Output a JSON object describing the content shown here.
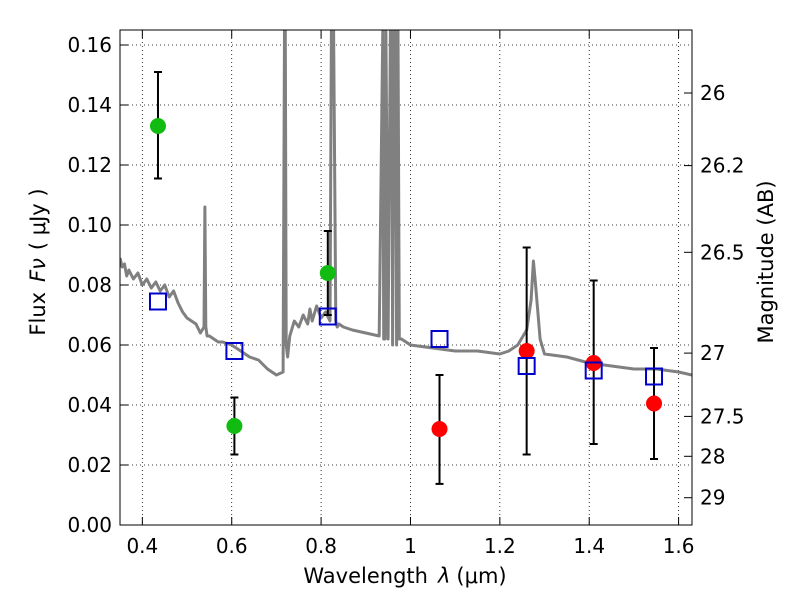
{
  "chart_data": {
    "type": "scatter",
    "xlabel_text": "Wavelength",
    "xlabel_unit": "(μm)",
    "xlabel_symbol": "λ",
    "ylabel_text": "Flux",
    "ylabel_symbol": "Fν",
    "ylabel_unit": "( μJy )",
    "y2label": "Magnitude (AB)",
    "xlim": [
      0.35,
      1.63
    ],
    "ylim": [
      0.0,
      0.165
    ],
    "grid": true,
    "x_ticks": [
      {
        "value": 0.4,
        "label": "0.4"
      },
      {
        "value": 0.6,
        "label": "0.6"
      },
      {
        "value": 0.8,
        "label": "0.8"
      },
      {
        "value": 1.0,
        "label": "1"
      },
      {
        "value": 1.2,
        "label": "1.2"
      },
      {
        "value": 1.4,
        "label": "1.4"
      },
      {
        "value": 1.6,
        "label": "1.6"
      }
    ],
    "y_ticks": [
      {
        "value": 0.0,
        "label": "0.00"
      },
      {
        "value": 0.02,
        "label": "0.02"
      },
      {
        "value": 0.04,
        "label": "0.04"
      },
      {
        "value": 0.06,
        "label": "0.06"
      },
      {
        "value": 0.08,
        "label": "0.08"
      },
      {
        "value": 0.1,
        "label": "0.10"
      },
      {
        "value": 0.12,
        "label": "0.12"
      },
      {
        "value": 0.14,
        "label": "0.14"
      },
      {
        "value": 0.16,
        "label": "0.16"
      }
    ],
    "y2_ticks": [
      {
        "flux": 0.144,
        "label": "26"
      },
      {
        "flux": 0.1198,
        "label": "26.2"
      },
      {
        "flux": 0.0909,
        "label": "26.5"
      },
      {
        "flux": 0.0573,
        "label": "27"
      },
      {
        "flux": 0.0362,
        "label": "27.5"
      },
      {
        "flux": 0.0229,
        "label": "28"
      },
      {
        "flux": 0.0091,
        "label": "29"
      }
    ],
    "series": [
      {
        "name": "green detections",
        "color": "#11bb11",
        "marker": "circle",
        "points": [
          {
            "x": 0.435,
            "y": 0.133,
            "ylo": 0.1155,
            "yhi": 0.151
          },
          {
            "x": 0.606,
            "y": 0.033,
            "ylo": 0.0235,
            "yhi": 0.0425
          },
          {
            "x": 0.815,
            "y": 0.084,
            "ylo": 0.07,
            "yhi": 0.098
          }
        ]
      },
      {
        "name": "red detections",
        "color": "#ff0000",
        "marker": "circle",
        "points": [
          {
            "x": 1.065,
            "y": 0.032,
            "ylo": 0.0137,
            "yhi": 0.05
          },
          {
            "x": 1.26,
            "y": 0.058,
            "ylo": 0.0235,
            "yhi": 0.0925
          },
          {
            "x": 1.41,
            "y": 0.054,
            "ylo": 0.027,
            "yhi": 0.0815
          },
          {
            "x": 1.545,
            "y": 0.0405,
            "ylo": 0.022,
            "yhi": 0.059
          }
        ]
      },
      {
        "name": "model photometry",
        "color": "#0000cc",
        "marker": "open-square",
        "points": [
          {
            "x": 0.435,
            "y": 0.0745
          },
          {
            "x": 0.606,
            "y": 0.058
          },
          {
            "x": 0.815,
            "y": 0.0695
          },
          {
            "x": 1.065,
            "y": 0.062
          },
          {
            "x": 1.26,
            "y": 0.053
          },
          {
            "x": 1.41,
            "y": 0.0515
          },
          {
            "x": 1.545,
            "y": 0.0495
          }
        ]
      }
    ],
    "model_spectrum": {
      "name": "model SED",
      "color": "#808080",
      "x": [
        0.35,
        0.355,
        0.36,
        0.365,
        0.37,
        0.38,
        0.39,
        0.4,
        0.41,
        0.42,
        0.43,
        0.44,
        0.45,
        0.46,
        0.47,
        0.48,
        0.49,
        0.5,
        0.51,
        0.52,
        0.53,
        0.538,
        0.54,
        0.542,
        0.545,
        0.55,
        0.56,
        0.57,
        0.58,
        0.6,
        0.62,
        0.64,
        0.66,
        0.68,
        0.7,
        0.715,
        0.718,
        0.72,
        0.722,
        0.725,
        0.73,
        0.74,
        0.75,
        0.76,
        0.77,
        0.775,
        0.78,
        0.79,
        0.8,
        0.81,
        0.82,
        0.823,
        0.828,
        0.833,
        0.836,
        0.84,
        0.85,
        0.87,
        0.9,
        0.93,
        0.938,
        0.94,
        0.943,
        0.945,
        0.95,
        0.955,
        0.958,
        0.96,
        0.963,
        0.966,
        0.969,
        0.972,
        0.975,
        0.98,
        0.99,
        1.0,
        1.05,
        1.1,
        1.15,
        1.2,
        1.22,
        1.24,
        1.26,
        1.27,
        1.275,
        1.28,
        1.29,
        1.3,
        1.35,
        1.4,
        1.45,
        1.5,
        1.55,
        1.6,
        1.63
      ],
      "y": [
        0.089,
        0.086,
        0.087,
        0.083,
        0.085,
        0.082,
        0.084,
        0.08,
        0.082,
        0.079,
        0.081,
        0.078,
        0.08,
        0.076,
        0.078,
        0.074,
        0.071,
        0.069,
        0.068,
        0.067,
        0.064,
        0.066,
        0.106,
        0.066,
        0.063,
        0.063,
        0.062,
        0.061,
        0.061,
        0.06,
        0.058,
        0.056,
        0.055,
        0.052,
        0.05,
        0.051,
        0.165,
        0.165,
        0.06,
        0.056,
        0.063,
        0.068,
        0.066,
        0.07,
        0.067,
        0.072,
        0.068,
        0.073,
        0.069,
        0.071,
        0.068,
        0.165,
        0.165,
        0.068,
        0.066,
        0.067,
        0.066,
        0.065,
        0.064,
        0.063,
        0.165,
        0.062,
        0.062,
        0.165,
        0.062,
        0.165,
        0.165,
        0.06,
        0.165,
        0.165,
        0.06,
        0.165,
        0.062,
        0.062,
        0.061,
        0.06,
        0.059,
        0.058,
        0.058,
        0.057,
        0.058,
        0.06,
        0.065,
        0.075,
        0.088,
        0.08,
        0.062,
        0.057,
        0.056,
        0.054,
        0.053,
        0.052,
        0.052,
        0.051,
        0.05
      ]
    }
  }
}
